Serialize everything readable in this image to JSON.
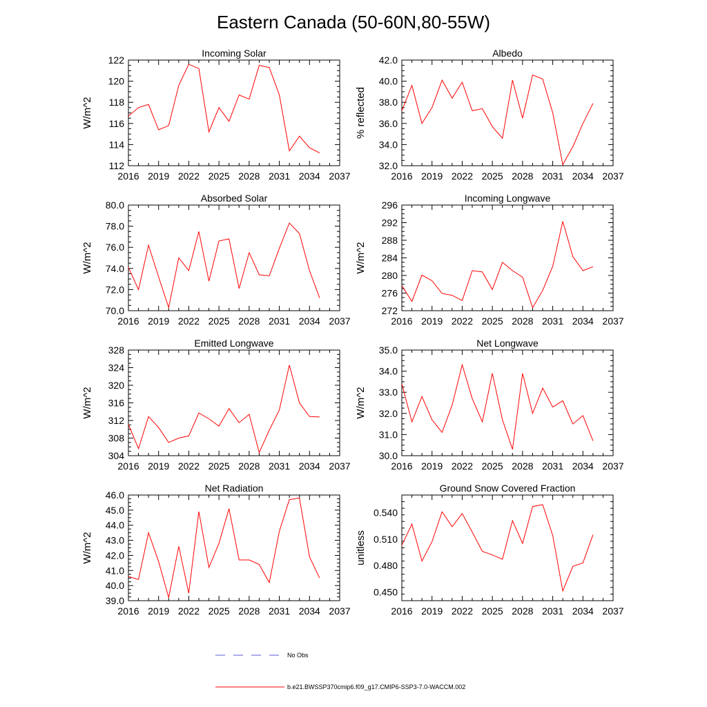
{
  "figure": {
    "title": "Eastern Canada (50-60N,80-55W)",
    "legend": [
      {
        "label": "No Obs",
        "color": "#5b5bd6",
        "style": "dashed"
      },
      {
        "label": "b.e21.BWSSP370cmip6.f09_g17.CMIP6-SSP3-7.0-WACCM.002",
        "color": "#ff0000",
        "style": "solid"
      }
    ]
  },
  "chart_data": [
    {
      "type": "line",
      "title": "Incoming Solar",
      "xlabel": "",
      "ylabel": "W/m^2",
      "xlim": [
        2016,
        2037
      ],
      "ylim": [
        112,
        122
      ],
      "yticks": [
        112,
        114,
        116,
        118,
        120,
        122
      ],
      "ytick_labels": [
        "112",
        "114",
        "116",
        "118",
        "120",
        "122"
      ],
      "xticks": [
        2016,
        2019,
        2022,
        2025,
        2028,
        2031,
        2034,
        2037
      ],
      "xtick_labels": [
        "2016",
        "2019",
        "2022",
        "2025",
        "2028",
        "2031",
        "2034",
        "2037"
      ],
      "x": [
        2016,
        2017,
        2018,
        2019,
        2020,
        2021,
        2022,
        2023,
        2024,
        2025,
        2026,
        2027,
        2028,
        2029,
        2030,
        2031,
        2032,
        2033,
        2034,
        2035
      ],
      "series": [
        {
          "values": [
            116.7,
            117.5,
            117.8,
            115.4,
            115.8,
            119.6,
            121.6,
            121.2,
            115.2,
            117.5,
            116.2,
            118.7,
            118.3,
            121.5,
            121.3,
            118.7,
            113.4,
            114.8,
            113.7,
            113.2
          ],
          "color": "#ff0000"
        }
      ]
    },
    {
      "type": "line",
      "title": "Albedo",
      "xlabel": "",
      "ylabel": "% reflected",
      "xlim": [
        2016,
        2037
      ],
      "ylim": [
        32,
        42
      ],
      "yticks": [
        32,
        34,
        36,
        38,
        40,
        42
      ],
      "ytick_labels": [
        "32.0",
        "34.0",
        "36.0",
        "38.0",
        "40.0",
        "42.0"
      ],
      "xticks": [
        2016,
        2019,
        2022,
        2025,
        2028,
        2031,
        2034,
        2037
      ],
      "xtick_labels": [
        "2016",
        "2019",
        "2022",
        "2025",
        "2028",
        "2031",
        "2034",
        "2037"
      ],
      "x": [
        2016,
        2017,
        2018,
        2019,
        2020,
        2021,
        2022,
        2023,
        2024,
        2025,
        2026,
        2027,
        2028,
        2029,
        2030,
        2031,
        2032,
        2033,
        2034,
        2035
      ],
      "series": [
        {
          "values": [
            37.2,
            39.6,
            36.0,
            37.5,
            40.1,
            38.4,
            39.9,
            37.2,
            37.4,
            35.7,
            34.6,
            40.1,
            36.5,
            40.6,
            40.2,
            37.0,
            32.1,
            33.8,
            36.0,
            37.9
          ],
          "color": "#ff0000"
        }
      ]
    },
    {
      "type": "line",
      "title": "Absorbed Solar",
      "xlabel": "",
      "ylabel": "W/m^2",
      "xlim": [
        2016,
        2037
      ],
      "ylim": [
        70,
        80
      ],
      "yticks": [
        70,
        72,
        74,
        76,
        78,
        80
      ],
      "ytick_labels": [
        "70.0",
        "72.0",
        "74.0",
        "76.0",
        "78.0",
        "80.0"
      ],
      "xticks": [
        2016,
        2019,
        2022,
        2025,
        2028,
        2031,
        2034,
        2037
      ],
      "xtick_labels": [
        "2016",
        "2019",
        "2022",
        "2025",
        "2028",
        "2031",
        "2034",
        "2037"
      ],
      "x": [
        2016,
        2017,
        2018,
        2019,
        2020,
        2021,
        2022,
        2023,
        2024,
        2025,
        2026,
        2027,
        2028,
        2029,
        2030,
        2031,
        2032,
        2033,
        2034,
        2035
      ],
      "series": [
        {
          "values": [
            74.1,
            72.0,
            76.2,
            73.2,
            70.3,
            75.0,
            73.8,
            77.5,
            72.8,
            76.6,
            76.8,
            72.1,
            75.5,
            73.4,
            73.3,
            75.9,
            78.3,
            77.3,
            73.8,
            71.2
          ],
          "color": "#ff0000"
        }
      ]
    },
    {
      "type": "line",
      "title": "Incoming Longwave",
      "xlabel": "",
      "ylabel": "W/m^2",
      "xlim": [
        2016,
        2037
      ],
      "ylim": [
        272,
        296
      ],
      "yticks": [
        272,
        276,
        280,
        284,
        288,
        292,
        296
      ],
      "ytick_labels": [
        "272",
        "276",
        "280",
        "284",
        "288",
        "292",
        "296"
      ],
      "xticks": [
        2016,
        2019,
        2022,
        2025,
        2028,
        2031,
        2034,
        2037
      ],
      "xtick_labels": [
        "2016",
        "2019",
        "2022",
        "2025",
        "2028",
        "2031",
        "2034",
        "2037"
      ],
      "x": [
        2016,
        2017,
        2018,
        2019,
        2020,
        2021,
        2022,
        2023,
        2024,
        2025,
        2026,
        2027,
        2028,
        2029,
        2030,
        2031,
        2032,
        2033,
        2034,
        2035
      ],
      "series": [
        {
          "values": [
            277.7,
            274.1,
            280.1,
            278.8,
            275.9,
            275.5,
            274.3,
            281.1,
            280.8,
            276.8,
            283.0,
            281.1,
            279.6,
            272.7,
            276.6,
            282.1,
            292.3,
            284.3,
            281.1,
            282.0
          ],
          "color": "#ff0000"
        }
      ]
    },
    {
      "type": "line",
      "title": "Emitted Longwave",
      "xlabel": "",
      "ylabel": "W/m^2",
      "xlim": [
        2016,
        2037
      ],
      "ylim": [
        304,
        328
      ],
      "yticks": [
        304,
        308,
        312,
        316,
        320,
        324,
        328
      ],
      "ytick_labels": [
        "304",
        "308",
        "312",
        "316",
        "320",
        "324",
        "328"
      ],
      "xticks": [
        2016,
        2019,
        2022,
        2025,
        2028,
        2031,
        2034,
        2037
      ],
      "xtick_labels": [
        "2016",
        "2019",
        "2022",
        "2025",
        "2028",
        "2031",
        "2034",
        "2037"
      ],
      "x": [
        2016,
        2017,
        2018,
        2019,
        2020,
        2021,
        2022,
        2023,
        2024,
        2025,
        2026,
        2027,
        2028,
        2029,
        2030,
        2031,
        2032,
        2033,
        2034,
        2035
      ],
      "series": [
        {
          "values": [
            311.1,
            305.6,
            312.9,
            310.4,
            307.0,
            308.0,
            308.5,
            313.7,
            312.4,
            310.7,
            314.7,
            311.5,
            313.4,
            304.7,
            309.8,
            314.4,
            324.6,
            316.0,
            312.9,
            312.8
          ],
          "color": "#ff0000"
        }
      ]
    },
    {
      "type": "line",
      "title": "Net Longwave",
      "xlabel": "",
      "ylabel": "W/m^2",
      "xlim": [
        2016,
        2037
      ],
      "ylim": [
        30,
        35
      ],
      "yticks": [
        30,
        31,
        32,
        33,
        34,
        35
      ],
      "ytick_labels": [
        "30.0",
        "31.0",
        "32.0",
        "33.0",
        "34.0",
        "35.0"
      ],
      "xticks": [
        2016,
        2019,
        2022,
        2025,
        2028,
        2031,
        2034,
        2037
      ],
      "xtick_labels": [
        "2016",
        "2019",
        "2022",
        "2025",
        "2028",
        "2031",
        "2034",
        "2037"
      ],
      "x": [
        2016,
        2017,
        2018,
        2019,
        2020,
        2021,
        2022,
        2023,
        2024,
        2025,
        2026,
        2027,
        2028,
        2029,
        2030,
        2031,
        2032,
        2033,
        2034,
        2035
      ],
      "series": [
        {
          "values": [
            33.4,
            31.6,
            32.8,
            31.7,
            31.1,
            32.4,
            34.3,
            32.7,
            31.6,
            33.9,
            31.7,
            30.3,
            33.9,
            32.0,
            33.2,
            32.3,
            32.6,
            31.5,
            31.9,
            30.7
          ],
          "color": "#ff0000"
        }
      ]
    },
    {
      "type": "line",
      "title": "Net Radiation",
      "xlabel": "",
      "ylabel": "W/m^2",
      "xlim": [
        2016,
        2037
      ],
      "ylim": [
        39,
        46
      ],
      "yticks": [
        39,
        40,
        41,
        42,
        43,
        44,
        45,
        46
      ],
      "ytick_labels": [
        "39.0",
        "40.0",
        "41.0",
        "42.0",
        "43.0",
        "44.0",
        "45.0",
        "46.0"
      ],
      "xticks": [
        2016,
        2019,
        2022,
        2025,
        2028,
        2031,
        2034,
        2037
      ],
      "xtick_labels": [
        "2016",
        "2019",
        "2022",
        "2025",
        "2028",
        "2031",
        "2034",
        "2037"
      ],
      "x": [
        2016,
        2017,
        2018,
        2019,
        2020,
        2021,
        2022,
        2023,
        2024,
        2025,
        2026,
        2027,
        2028,
        2029,
        2030,
        2031,
        2032,
        2033,
        2034,
        2035
      ],
      "series": [
        {
          "values": [
            40.6,
            40.4,
            43.5,
            41.6,
            39.2,
            42.6,
            39.5,
            44.9,
            41.2,
            42.8,
            45.1,
            41.7,
            41.7,
            41.4,
            40.2,
            43.6,
            45.7,
            45.8,
            41.9,
            40.5
          ],
          "color": "#ff0000"
        }
      ]
    },
    {
      "type": "line",
      "title": "Ground Snow Covered Fraction",
      "xlabel": "",
      "ylabel": "unitless",
      "xlim": [
        2016,
        2037
      ],
      "ylim": [
        0.44,
        0.56
      ],
      "yticks": [
        0.45,
        0.48,
        0.51,
        0.54
      ],
      "ytick_labels": [
        "0.450",
        "0.480",
        "0.510",
        "0.540"
      ],
      "xticks": [
        2016,
        2019,
        2022,
        2025,
        2028,
        2031,
        2034,
        2037
      ],
      "xtick_labels": [
        "2016",
        "2019",
        "2022",
        "2025",
        "2028",
        "2031",
        "2034",
        "2037"
      ],
      "x": [
        2016,
        2017,
        2018,
        2019,
        2020,
        2021,
        2022,
        2023,
        2024,
        2025,
        2026,
        2027,
        2028,
        2029,
        2030,
        2031,
        2032,
        2033,
        2034,
        2035
      ],
      "series": [
        {
          "values": [
            0.503,
            0.527,
            0.485,
            0.507,
            0.541,
            0.524,
            0.539,
            0.518,
            0.496,
            0.492,
            0.487,
            0.531,
            0.505,
            0.547,
            0.549,
            0.514,
            0.451,
            0.479,
            0.483,
            0.515
          ],
          "color": "#ff0000"
        }
      ]
    }
  ]
}
